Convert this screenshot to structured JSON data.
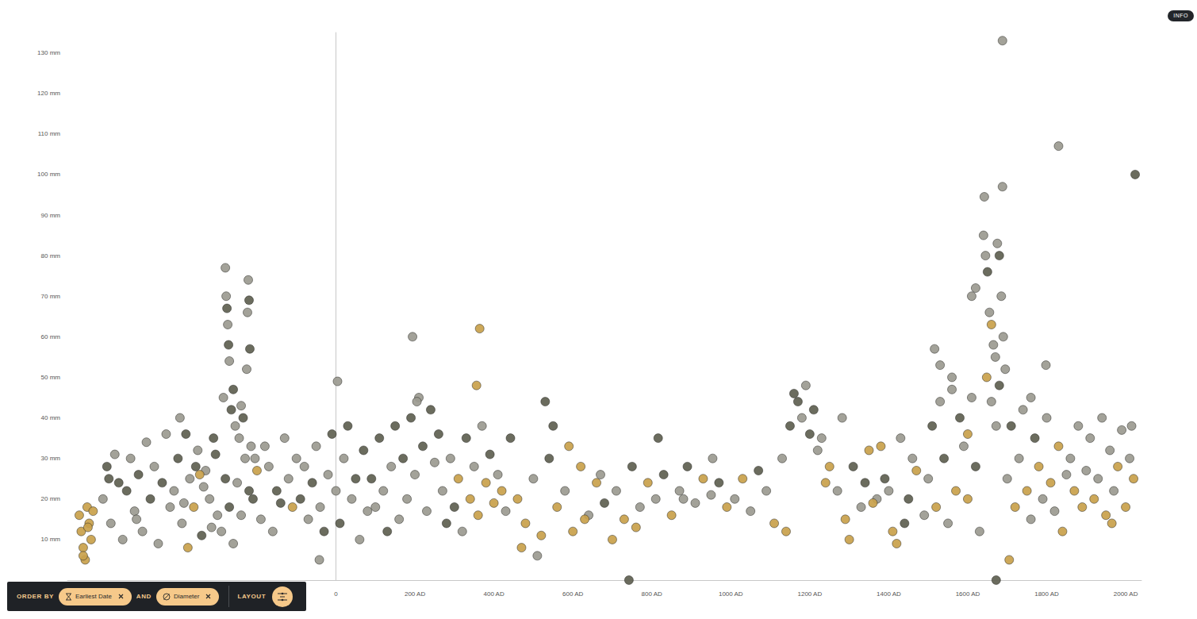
{
  "chart_data": {
    "type": "scatter",
    "marker": "circle",
    "grid": false,
    "xlim": [
      -680,
      2040
    ],
    "ylim": [
      0,
      135
    ],
    "xticks": [
      0,
      {
        "value": 200,
        "label": "200 AD"
      },
      {
        "value": 400,
        "label": "400 AD"
      },
      {
        "value": 600,
        "label": "600 AD"
      },
      {
        "value": 800,
        "label": "800 AD"
      },
      {
        "value": 1000,
        "label": "1000 AD"
      },
      {
        "value": 1200,
        "label": "1200 AD"
      },
      {
        "value": 1400,
        "label": "1400 AD"
      },
      {
        "value": 1600,
        "label": "1600 AD"
      },
      {
        "value": 1800,
        "label": "1800 AD"
      },
      {
        "value": 2000,
        "label": "2000 AD"
      }
    ],
    "yticks": [
      {
        "value": 10,
        "label": "10 mm"
      },
      {
        "value": 20,
        "label": "20 mm"
      },
      {
        "value": 30,
        "label": "30 mm"
      },
      {
        "value": 40,
        "label": "40 mm"
      },
      {
        "value": 50,
        "label": "50 mm"
      },
      {
        "value": 60,
        "label": "60 mm"
      },
      {
        "value": 70,
        "label": "70 mm"
      },
      {
        "value": 80,
        "label": "80 mm"
      },
      {
        "value": 90,
        "label": "90 mm"
      },
      {
        "value": 100,
        "label": "100 mm"
      },
      {
        "value": 110,
        "label": "110 mm"
      },
      {
        "value": 120,
        "label": "120 mm"
      },
      {
        "value": 130,
        "label": "130 mm"
      }
    ],
    "x": [
      -650,
      -645,
      -640,
      -635,
      -630,
      -625,
      -620,
      -615,
      -640,
      -628,
      -590,
      -580,
      -570,
      -560,
      -550,
      -540,
      -530,
      -520,
      -510,
      -500,
      -490,
      -480,
      -470,
      -460,
      -450,
      -440,
      -430,
      -420,
      -575,
      -505,
      -410,
      -400,
      -390,
      -380,
      -370,
      -360,
      -350,
      -340,
      -330,
      -320,
      -310,
      -300,
      -395,
      -375,
      -355,
      -335,
      -315,
      -305,
      -385,
      -345,
      -280,
      -278,
      -276,
      -274,
      -272,
      -270,
      -222,
      -220,
      -224,
      -226,
      -218,
      -285,
      -265,
      -255,
      -245,
      -235,
      -215,
      -205,
      -260,
      -240,
      -290,
      -270,
      -250,
      -230,
      -210,
      -190,
      -170,
      -150,
      -130,
      -110,
      -280,
      -260,
      -240,
      -220,
      -200,
      -180,
      -160,
      -140,
      -120,
      -100,
      -90,
      -80,
      -70,
      -60,
      -50,
      -40,
      -30,
      -20,
      -10,
      0,
      10,
      20,
      30,
      40,
      50,
      60,
      70,
      80,
      -42,
      4,
      90,
      100,
      110,
      120,
      130,
      140,
      150,
      160,
      170,
      180,
      190,
      200,
      210,
      220,
      230,
      240,
      250,
      260,
      194,
      205,
      270,
      280,
      290,
      300,
      310,
      320,
      330,
      340,
      350,
      360,
      370,
      380,
      390,
      400,
      410,
      420,
      430,
      364,
      442,
      356,
      460,
      480,
      500,
      520,
      540,
      560,
      580,
      600,
      620,
      640,
      660,
      680,
      700,
      530,
      550,
      470,
      510,
      590,
      630,
      670,
      710,
      730,
      750,
      770,
      790,
      810,
      830,
      850,
      870,
      890,
      910,
      930,
      950,
      970,
      990,
      742,
      816,
      954,
      760,
      880,
      1010,
      1030,
      1050,
      1070,
      1090,
      1110,
      1130,
      1150,
      1170,
      1190,
      1210,
      1230,
      1250,
      1160,
      1180,
      1200,
      1220,
      1240,
      1282,
      1140,
      1270,
      1290,
      1310,
      1330,
      1350,
      1370,
      1390,
      1410,
      1430,
      1450,
      1470,
      1490,
      1300,
      1340,
      1380,
      1420,
      1460,
      1360,
      1440,
      1400,
      1500,
      1510,
      1520,
      1530,
      1540,
      1550,
      1560,
      1570,
      1580,
      1590,
      1600,
      1610,
      1620,
      1630,
      1516,
      1530,
      1560,
      1600,
      1620,
      1610,
      1640,
      1645,
      1650,
      1655,
      1660,
      1665,
      1670,
      1675,
      1680,
      1685,
      1690,
      1642,
      1688,
      1688,
      1648,
      1660,
      1672,
      1680,
      1695,
      1672,
      1700,
      1710,
      1720,
      1730,
      1740,
      1750,
      1760,
      1770,
      1780,
      1790,
      1800,
      1810,
      1820,
      1830,
      1840,
      1850,
      1798,
      1830,
      1705,
      1760,
      1860,
      1870,
      1880,
      1890,
      1900,
      1910,
      1920,
      1930,
      1940,
      1950,
      1960,
      1970,
      1980,
      1990,
      2000,
      2010,
      2020,
      2024,
      2015,
      1965
    ],
    "values": [
      16,
      12,
      8,
      5,
      18,
      14,
      10,
      17,
      6,
      13,
      20,
      28,
      14,
      31,
      24,
      10,
      22,
      30,
      17,
      26,
      12,
      34,
      20,
      28,
      9,
      24,
      36,
      18,
      25,
      15,
      22,
      30,
      14,
      36,
      25,
      18,
      32,
      11,
      27,
      20,
      35,
      16,
      40,
      8,
      28,
      23,
      13,
      31,
      19,
      26,
      77,
      70,
      67,
      63,
      58,
      54,
      74,
      69,
      66,
      52,
      57,
      45,
      42,
      38,
      35,
      40,
      33,
      30,
      47,
      43,
      12,
      18,
      24,
      30,
      20,
      15,
      28,
      22,
      35,
      18,
      25,
      9,
      16,
      22,
      27,
      33,
      12,
      19,
      25,
      30,
      20,
      28,
      15,
      24,
      33,
      18,
      12,
      26,
      36,
      22,
      14,
      30,
      38,
      20,
      25,
      10,
      32,
      17,
      5,
      49,
      25,
      18,
      35,
      22,
      12,
      28,
      38,
      15,
      30,
      20,
      40,
      26,
      45,
      33,
      17,
      42,
      29,
      36,
      60,
      44,
      22,
      14,
      30,
      18,
      25,
      12,
      35,
      20,
      28,
      16,
      38,
      24,
      31,
      19,
      26,
      22,
      17,
      62,
      35,
      48,
      20,
      14,
      25,
      11,
      30,
      18,
      22,
      12,
      28,
      16,
      24,
      19,
      10,
      44,
      38,
      8,
      6,
      33,
      15,
      26,
      22,
      15,
      28,
      18,
      24,
      20,
      26,
      16,
      22,
      28,
      19,
      25,
      21,
      24,
      18,
      0,
      35,
      30,
      13,
      20,
      20,
      25,
      17,
      27,
      22,
      14,
      30,
      38,
      44,
      48,
      42,
      35,
      28,
      46,
      40,
      36,
      32,
      24,
      40,
      12,
      22,
      15,
      28,
      18,
      32,
      20,
      25,
      12,
      35,
      20,
      27,
      16,
      10,
      24,
      33,
      9,
      30,
      19,
      14,
      22,
      25,
      38,
      18,
      44,
      30,
      14,
      47,
      22,
      40,
      33,
      20,
      45,
      28,
      12,
      57,
      53,
      50,
      36,
      72,
      70,
      85,
      80,
      76,
      66,
      63,
      58,
      55,
      83,
      80,
      70,
      60,
      94.5,
      97,
      133,
      50,
      44,
      38,
      48,
      52,
      0,
      25,
      38,
      18,
      30,
      42,
      22,
      15,
      35,
      28,
      20,
      40,
      24,
      17,
      33,
      12,
      26,
      53,
      107,
      5,
      45,
      30,
      22,
      38,
      18,
      27,
      35,
      20,
      25,
      40,
      16,
      32,
      22,
      28,
      37,
      18,
      30,
      25,
      100,
      38,
      14
    ],
    "colors": [
      "#c9a14b",
      "#c9a14b",
      "#c9a14b",
      "#c9a14b",
      "#c9a14b",
      "#c9a14b",
      "#c9a14b",
      "#c9a14b",
      "#c9a14b",
      "#c9a14b",
      "#9b9a90",
      "#5e6050",
      "#9b9a90",
      "#9b9a90",
      "#5e6050",
      "#9b9a90",
      "#5e6050",
      "#9b9a90",
      "#9b9a90",
      "#5e6050",
      "#9b9a90",
      "#9b9a90",
      "#5e6050",
      "#9b9a90",
      "#9b9a90",
      "#5e6050",
      "#9b9a90",
      "#9b9a90",
      "#5e6050",
      "#9b9a90",
      "#9b9a90",
      "#5e6050",
      "#9b9a90",
      "#5e6050",
      "#9b9a90",
      "#c9a14b",
      "#9b9a90",
      "#5e6050",
      "#9b9a90",
      "#9b9a90",
      "#5e6050",
      "#9b9a90",
      "#9b9a90",
      "#c9a14b",
      "#5e6050",
      "#9b9a90",
      "#9b9a90",
      "#5e6050",
      "#9b9a90",
      "#c9a14b",
      "#9b9a90",
      "#9b9a90",
      "#5e6050",
      "#9b9a90",
      "#5e6050",
      "#9b9a90",
      "#9b9a90",
      "#5e6050",
      "#9b9a90",
      "#9b9a90",
      "#5e6050",
      "#9b9a90",
      "#5e6050",
      "#9b9a90",
      "#9b9a90",
      "#5e6050",
      "#9b9a90",
      "#9b9a90",
      "#5e6050",
      "#9b9a90",
      "#9b9a90",
      "#5e6050",
      "#9b9a90",
      "#9b9a90",
      "#5e6050",
      "#9b9a90",
      "#9b9a90",
      "#5e6050",
      "#9b9a90",
      "#c9a14b",
      "#5e6050",
      "#9b9a90",
      "#9b9a90",
      "#5e6050",
      "#c9a14b",
      "#9b9a90",
      "#9b9a90",
      "#5e6050",
      "#9b9a90",
      "#9b9a90",
      "#5e6050",
      "#9b9a90",
      "#9b9a90",
      "#5e6050",
      "#9b9a90",
      "#9b9a90",
      "#5e6050",
      "#9b9a90",
      "#5e6050",
      "#9b9a90",
      "#5e6050",
      "#9b9a90",
      "#5e6050",
      "#9b9a90",
      "#5e6050",
      "#9b9a90",
      "#5e6050",
      "#9b9a90",
      "#9b9a90",
      "#9b9a90",
      "#5e6050",
      "#9b9a90",
      "#5e6050",
      "#9b9a90",
      "#5e6050",
      "#9b9a90",
      "#5e6050",
      "#9b9a90",
      "#5e6050",
      "#9b9a90",
      "#5e6050",
      "#9b9a90",
      "#9b9a90",
      "#5e6050",
      "#9b9a90",
      "#5e6050",
      "#9b9a90",
      "#5e6050",
      "#9b9a90",
      "#9b9a90",
      "#9b9a90",
      "#5e6050",
      "#9b9a90",
      "#5e6050",
      "#c9a14b",
      "#9b9a90",
      "#5e6050",
      "#c9a14b",
      "#9b9a90",
      "#c9a14b",
      "#9b9a90",
      "#c9a14b",
      "#5e6050",
      "#c9a14b",
      "#9b9a90",
      "#c9a14b",
      "#9b9a90",
      "#c9a14b",
      "#5e6050",
      "#c9a14b",
      "#c9a14b",
      "#c9a14b",
      "#9b9a90",
      "#c9a14b",
      "#5e6050",
      "#c9a14b",
      "#9b9a90",
      "#c9a14b",
      "#c9a14b",
      "#9b9a90",
      "#c9a14b",
      "#5e6050",
      "#c9a14b",
      "#5e6050",
      "#5e6050",
      "#c9a14b",
      "#9b9a90",
      "#c9a14b",
      "#c9a14b",
      "#9b9a90",
      "#9b9a90",
      "#c9a14b",
      "#5e6050",
      "#9b9a90",
      "#c9a14b",
      "#9b9a90",
      "#5e6050",
      "#c9a14b",
      "#9b9a90",
      "#5e6050",
      "#9b9a90",
      "#c9a14b",
      "#9b9a90",
      "#5e6050",
      "#c9a14b",
      "#5e6050",
      "#5e6050",
      "#9b9a90",
      "#c9a14b",
      "#9b9a90",
      "#9b9a90",
      "#c9a14b",
      "#9b9a90",
      "#5e6050",
      "#9b9a90",
      "#c9a14b",
      "#9b9a90",
      "#5e6050",
      "#5e6050",
      "#9b9a90",
      "#5e6050",
      "#9b9a90",
      "#c9a14b",
      "#5e6050",
      "#9b9a90",
      "#5e6050",
      "#9b9a90",
      "#c9a14b",
      "#9b9a90",
      "#c9a14b",
      "#9b9a90",
      "#c9a14b",
      "#5e6050",
      "#9b9a90",
      "#c9a14b",
      "#9b9a90",
      "#5e6050",
      "#c9a14b",
      "#9b9a90",
      "#5e6050",
      "#c9a14b",
      "#9b9a90",
      "#c9a14b",
      "#5e6050",
      "#c9a14b",
      "#c9a14b",
      "#9b9a90",
      "#c9a14b",
      "#5e6050",
      "#9b9a90",
      "#9b9a90",
      "#5e6050",
      "#c9a14b",
      "#9b9a90",
      "#5e6050",
      "#9b9a90",
      "#9b9a90",
      "#c9a14b",
      "#5e6050",
      "#9b9a90",
      "#c9a14b",
      "#9b9a90",
      "#5e6050",
      "#9b9a90",
      "#9b9a90",
      "#9b9a90",
      "#9b9a90",
      "#c9a14b",
      "#9b9a90",
      "#9b9a90",
      "#9b9a90",
      "#9b9a90",
      "#5e6050",
      "#9b9a90",
      "#c9a14b",
      "#9b9a90",
      "#9b9a90",
      "#9b9a90",
      "#5e6050",
      "#9b9a90",
      "#9b9a90",
      "#9b9a90",
      "#9b9a90",
      "#9b9a90",
      "#c9a14b",
      "#9b9a90",
      "#9b9a90",
      "#5e6050",
      "#9b9a90",
      "#5e6050",
      "#9b9a90",
      "#5e6050",
      "#c9a14b",
      "#9b9a90",
      "#9b9a90",
      "#c9a14b",
      "#9b9a90",
      "#5e6050",
      "#c9a14b",
      "#9b9a90",
      "#9b9a90",
      "#c9a14b",
      "#9b9a90",
      "#c9a14b",
      "#c9a14b",
      "#9b9a90",
      "#9b9a90",
      "#9b9a90",
      "#c9a14b",
      "#9b9a90",
      "#9b9a90",
      "#c9a14b",
      "#9b9a90",
      "#c9a14b",
      "#9b9a90",
      "#9b9a90",
      "#c9a14b",
      "#9b9a90",
      "#9b9a90",
      "#c9a14b",
      "#9b9a90",
      "#9b9a90",
      "#c9a14b",
      "#9b9a90",
      "#c9a14b",
      "#9b9a90",
      "#c9a14b",
      "#5e6050",
      "#9b9a90",
      "#c9a14b"
    ]
  },
  "ui": {
    "order_by": "ORDER BY",
    "sort_keys": [
      "Earliest Date",
      "Diameter"
    ],
    "joiner": "AND",
    "layout": "LAYOUT",
    "info": "INFO"
  }
}
